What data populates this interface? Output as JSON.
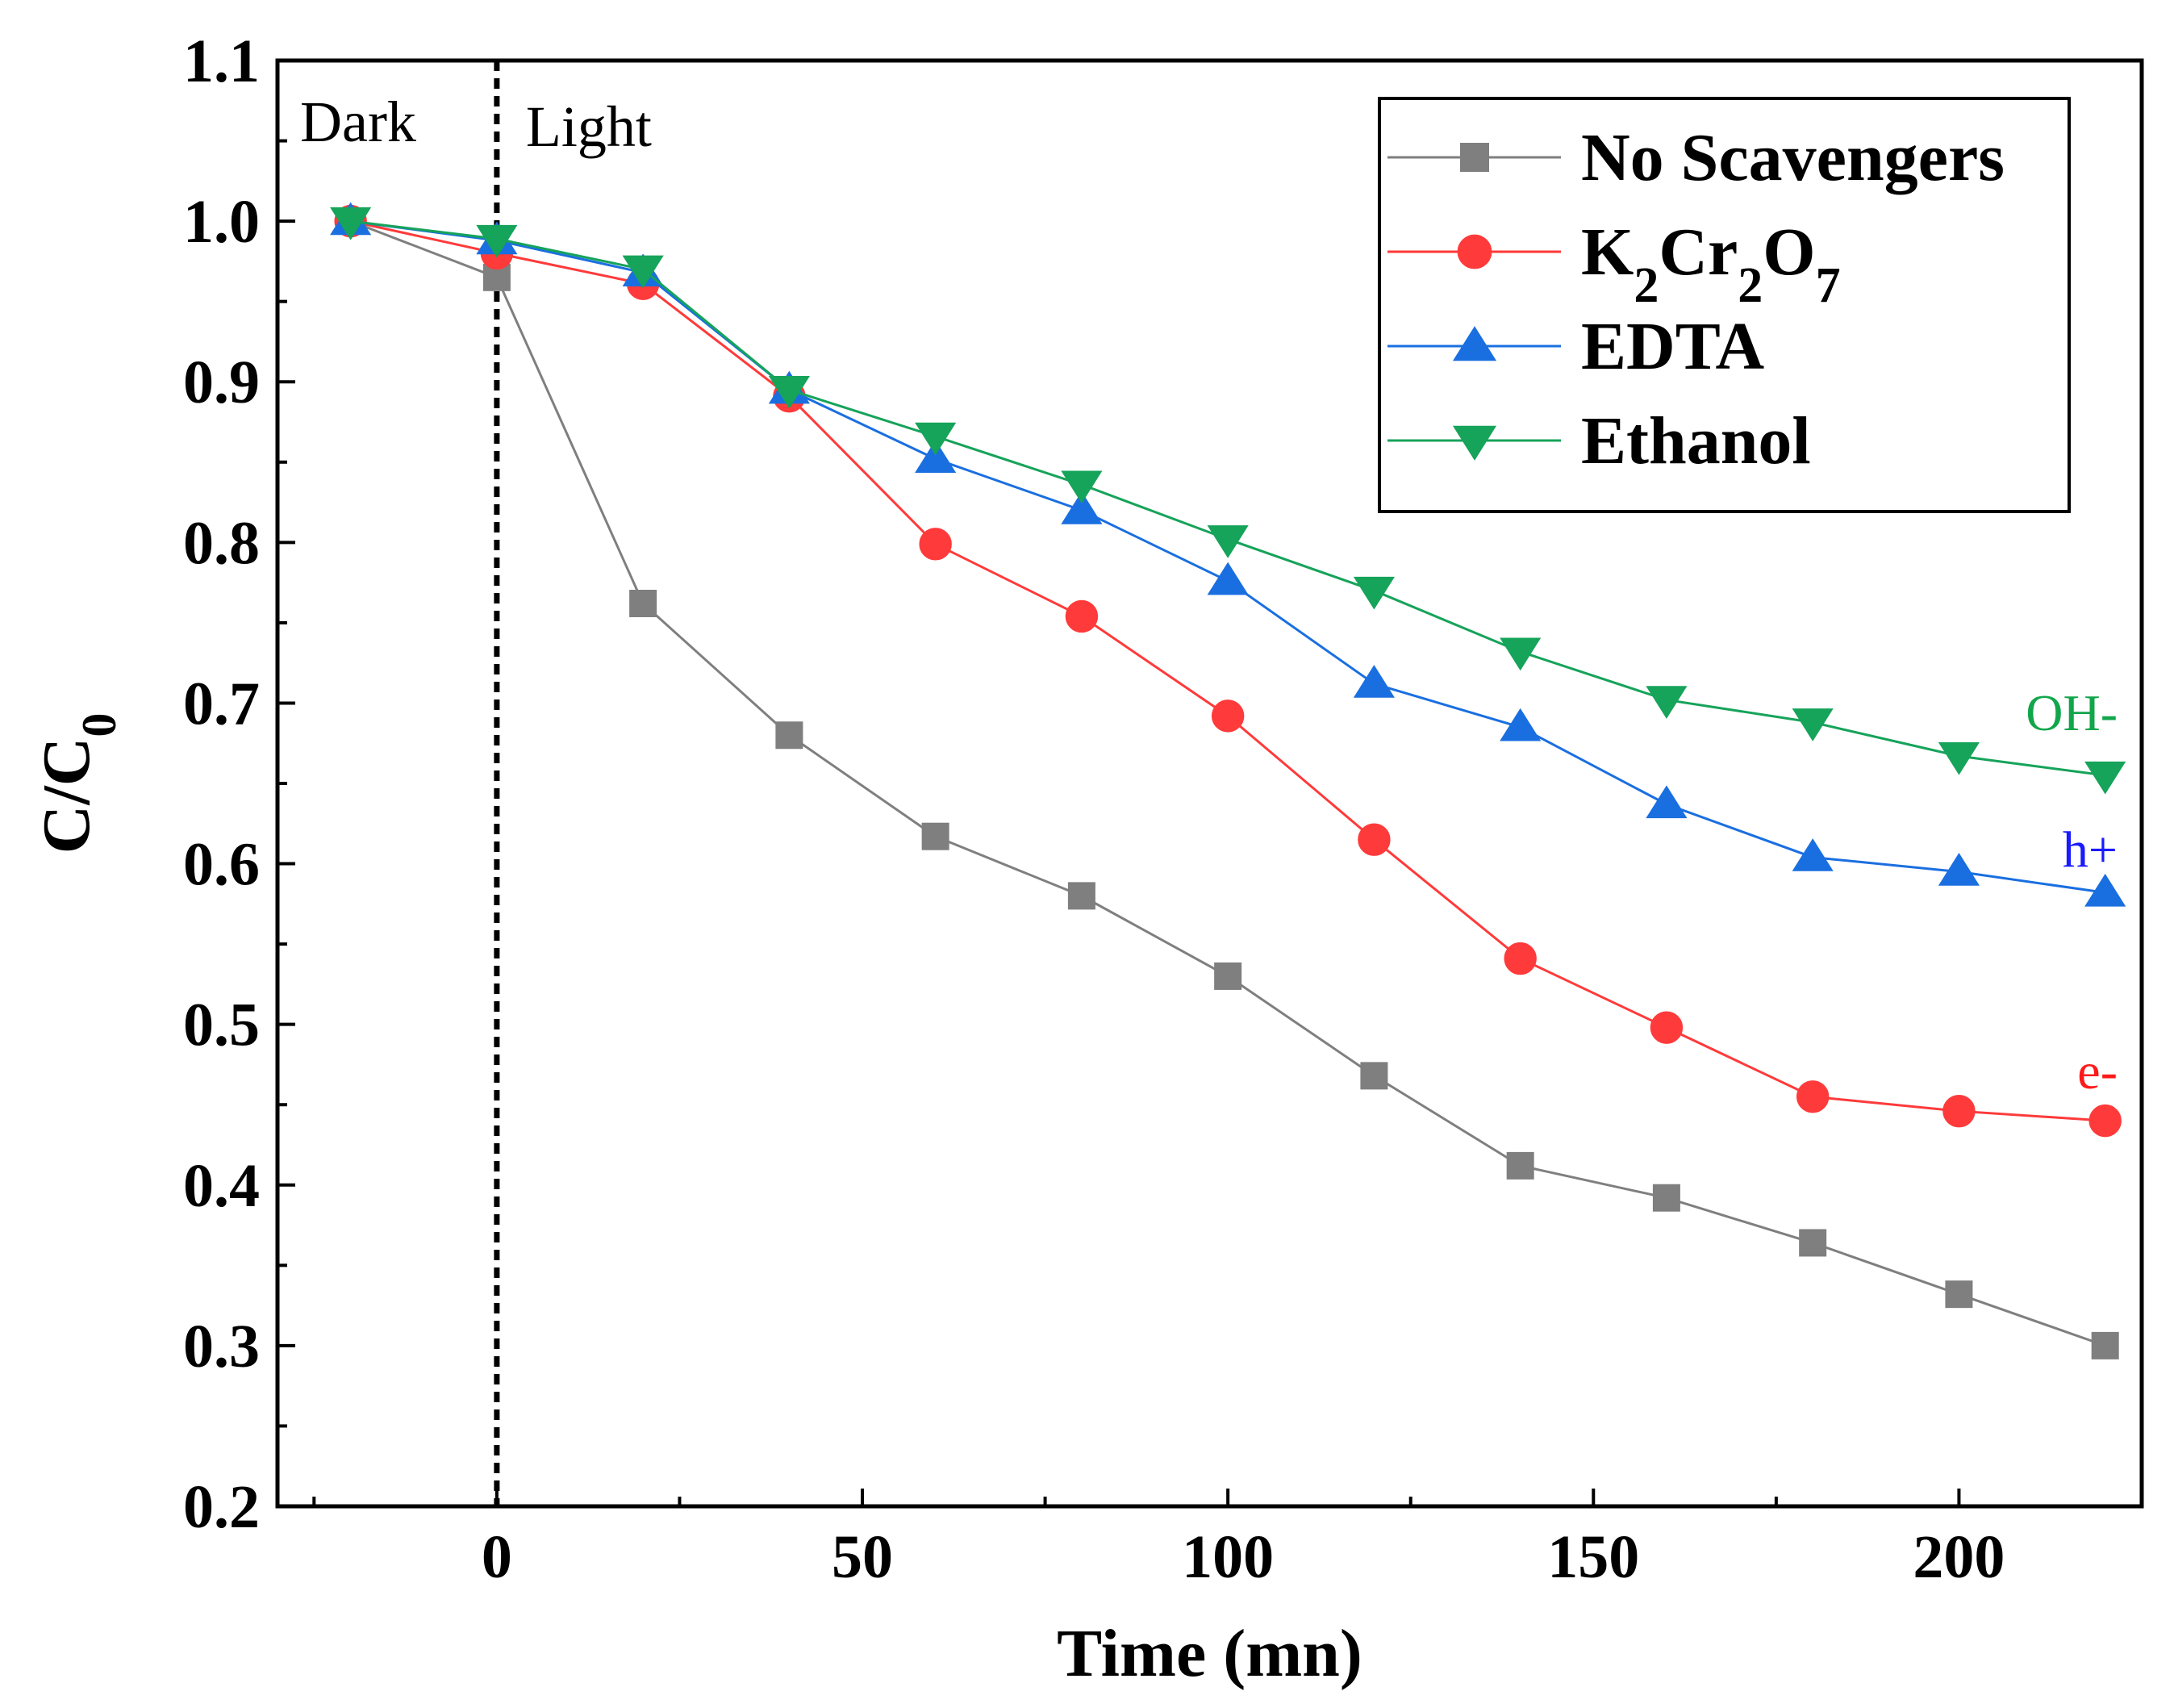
{
  "chart_data": {
    "type": "line",
    "xlabel": "Time (mn)",
    "ylabel_main": "C/C",
    "ylabel_sub": "0",
    "xlim": [
      -30,
      225
    ],
    "ylim": [
      0.2,
      1.1
    ],
    "xticks": [
      0,
      50,
      100,
      150,
      200
    ],
    "xtick_labels": [
      "0",
      "50",
      "100",
      "150",
      "200"
    ],
    "yticks": [
      0.2,
      0.3,
      0.4,
      0.5,
      0.6,
      0.7,
      0.8,
      0.9,
      1.0,
      1.1
    ],
    "ytick_labels": [
      "0.2",
      "0.3",
      "0.4",
      "0.5",
      "0.6",
      "0.7",
      "0.8",
      "0.9",
      "1.0",
      "1.1"
    ],
    "x_minor_step": 25,
    "y_minor_step": 0.05,
    "grid": false,
    "legend_position": "top-right",
    "divider_x": 0,
    "regions": {
      "left": "Dark",
      "right": "Light"
    },
    "x": [
      -20,
      0,
      20,
      40,
      60,
      80,
      100,
      120,
      140,
      160,
      180,
      200,
      220
    ],
    "series": [
      {
        "name": "No Scavengers",
        "color": "#7f7f7f",
        "marker": "square",
        "values": [
          1.0,
          0.965,
          0.762,
          0.68,
          0.617,
          0.58,
          0.53,
          0.468,
          0.412,
          0.392,
          0.364,
          0.332,
          0.3
        ]
      },
      {
        "name": "K2Cr2O7",
        "legend_parts": [
          {
            "text": "K",
            "sub": false
          },
          {
            "text": "2",
            "sub": true
          },
          {
            "text": "Cr",
            "sub": false
          },
          {
            "text": "2",
            "sub": true
          },
          {
            "text": "O",
            "sub": false
          },
          {
            "text": "7",
            "sub": true
          }
        ],
        "color": "#ff3a3a",
        "marker": "circle",
        "annotation": "e-",
        "values": [
          1.0,
          0.98,
          0.961,
          0.891,
          0.799,
          0.754,
          0.692,
          0.615,
          0.541,
          0.498,
          0.455,
          0.446,
          0.44
        ]
      },
      {
        "name": "EDTA",
        "color": "#1a6fe0",
        "marker": "triangle-up",
        "annotation": "h+",
        "values": [
          1.0,
          0.988,
          0.968,
          0.895,
          0.852,
          0.82,
          0.776,
          0.712,
          0.685,
          0.637,
          0.604,
          0.595,
          0.582
        ]
      },
      {
        "name": "Ethanol",
        "color": "#16a35a",
        "marker": "triangle-down",
        "annotation": "OH-",
        "values": [
          1.0,
          0.989,
          0.97,
          0.895,
          0.866,
          0.836,
          0.802,
          0.77,
          0.732,
          0.702,
          0.688,
          0.667,
          0.655
        ]
      }
    ]
  },
  "annotation_colors": {
    "e-": "#ff1a1a",
    "h+": "#1a1aff",
    "OH-": "#12a64b"
  }
}
